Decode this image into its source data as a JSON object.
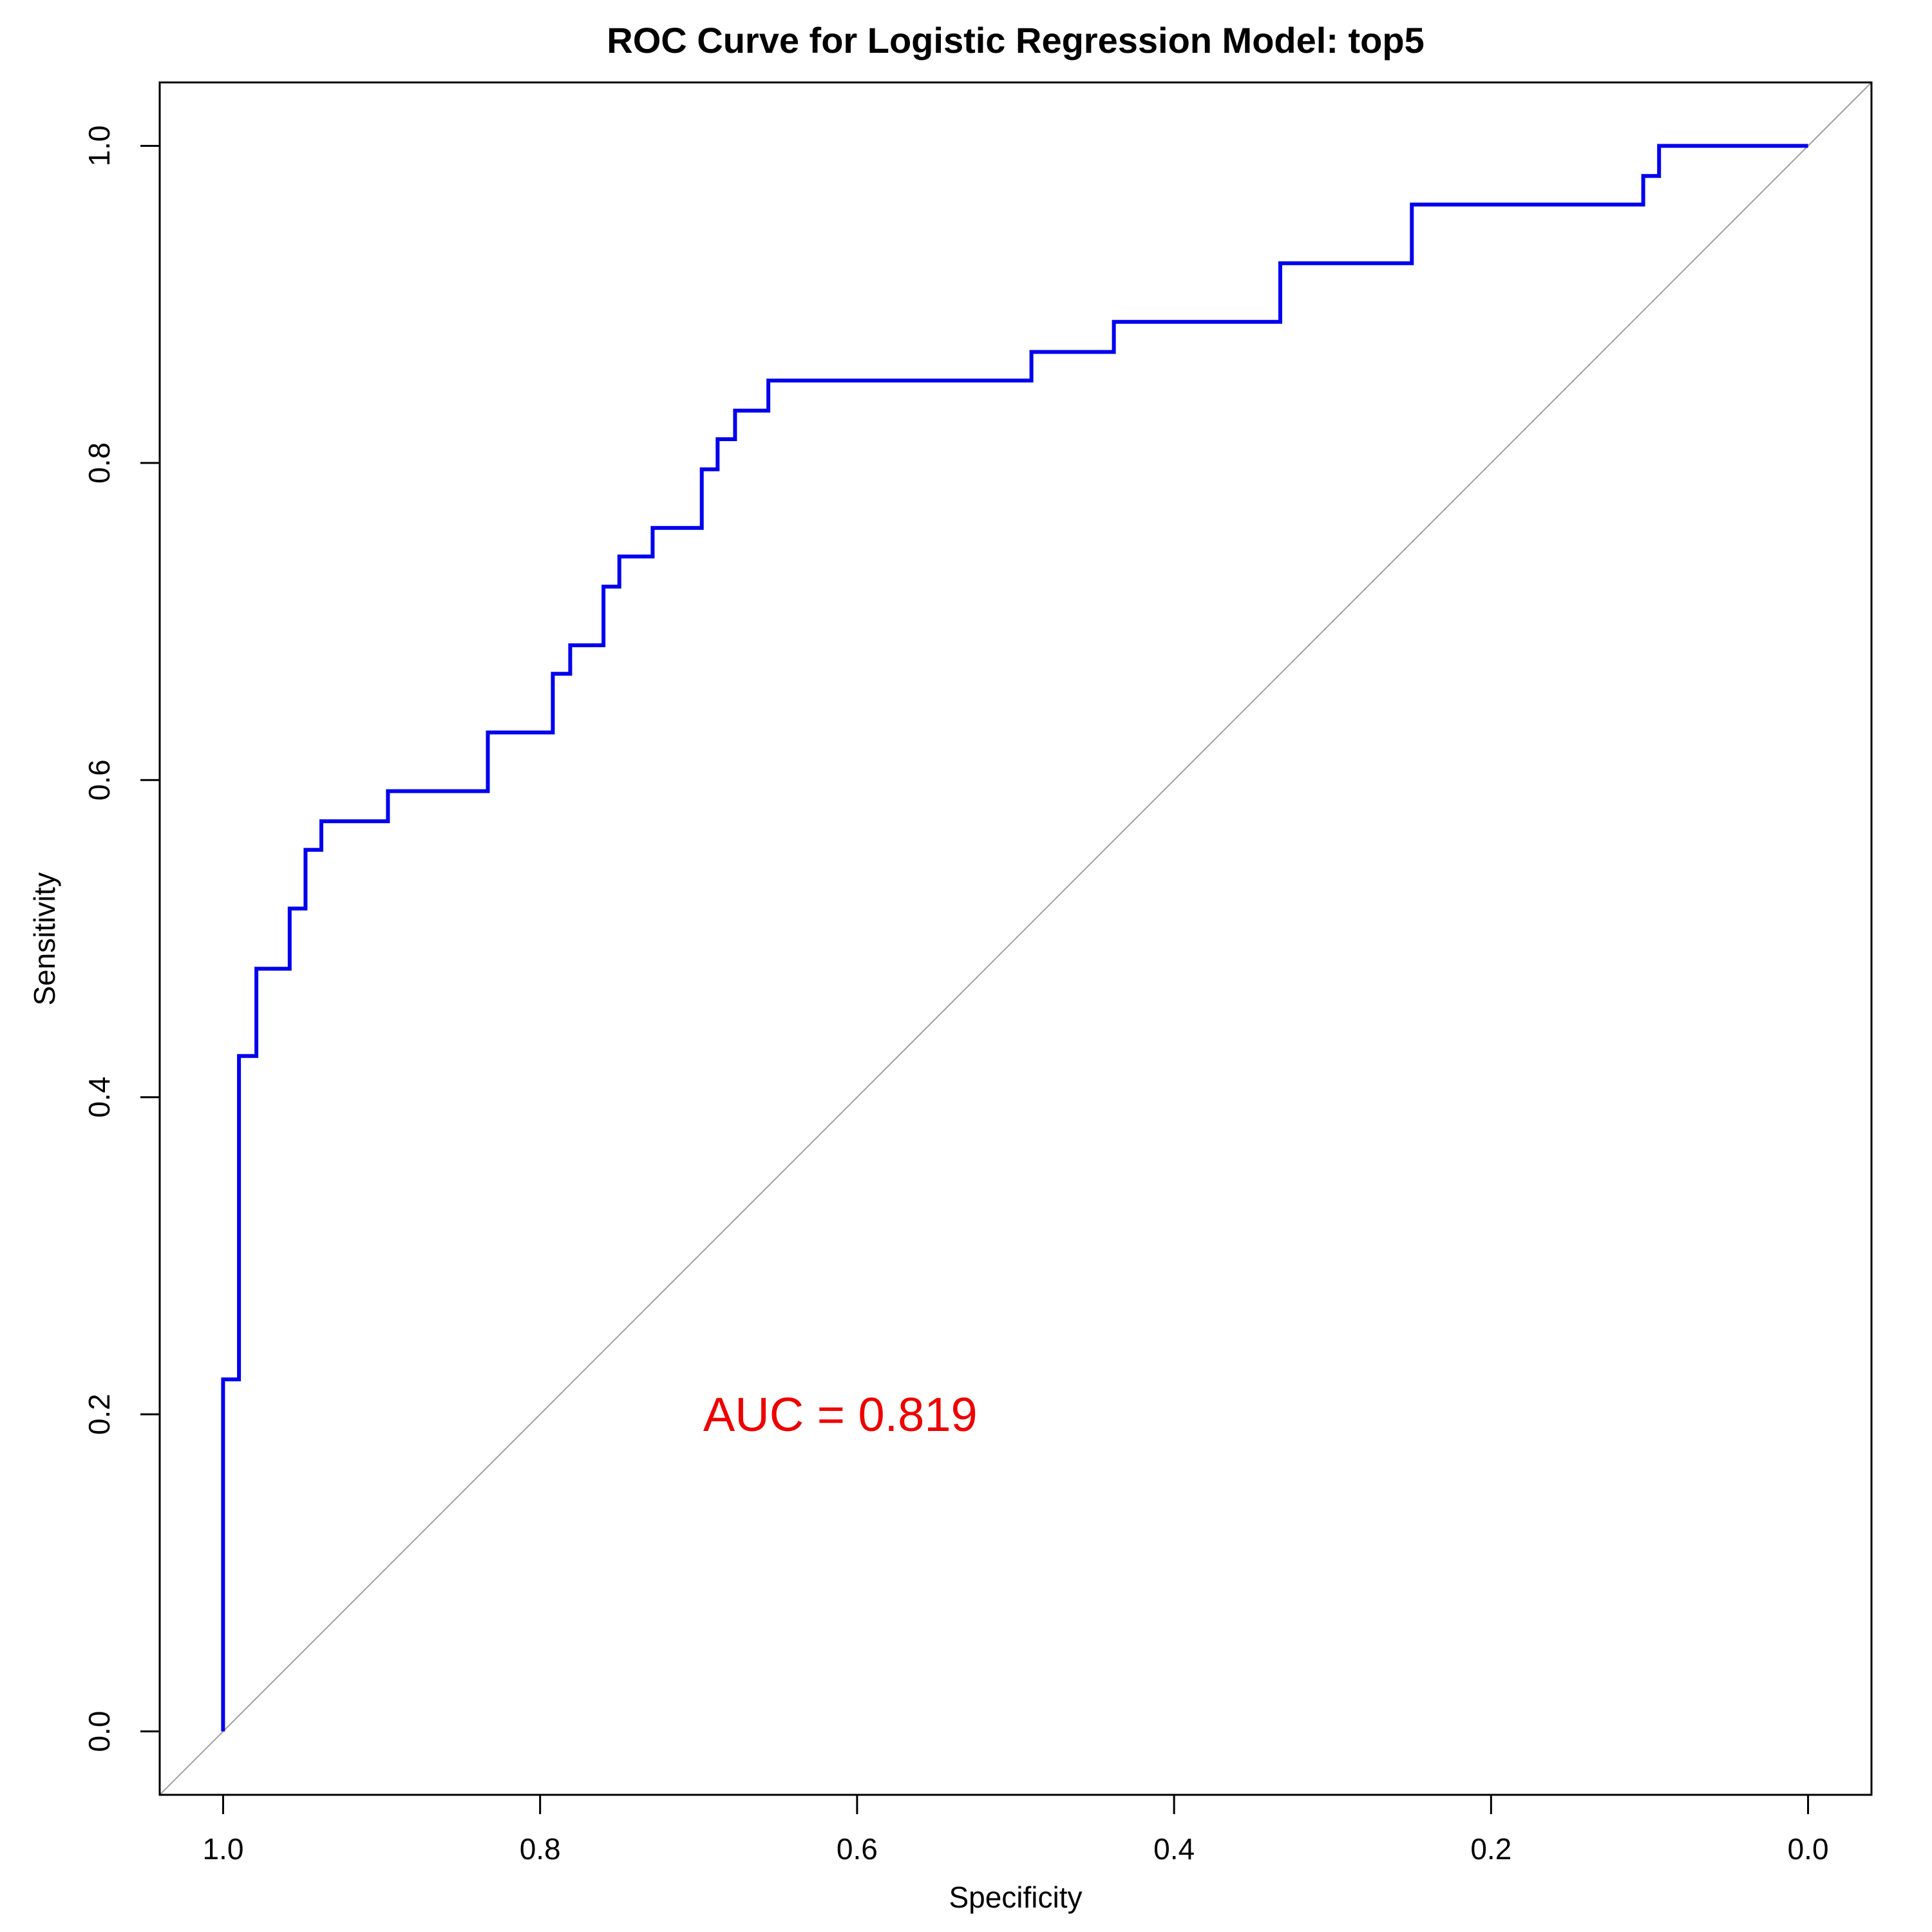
{
  "chart_data": {
    "type": "line",
    "title": "ROC Curve for Logistic Regression Model: top5",
    "xlabel": "Specificity",
    "ylabel": "Sensitivity",
    "x_reversed": true,
    "xlim": [
      1.04,
      -0.04
    ],
    "ylim": [
      -0.04,
      1.04
    ],
    "xticks": [
      1.0,
      0.8,
      0.6,
      0.4,
      0.2,
      0.0
    ],
    "xtick_labels": [
      "1.0",
      "0.8",
      "0.6",
      "0.4",
      "0.2",
      "0.0"
    ],
    "yticks": [
      0.0,
      0.2,
      0.4,
      0.6,
      0.8,
      1.0
    ],
    "ytick_labels": [
      "0.0",
      "0.2",
      "0.4",
      "0.6",
      "0.8",
      "1.0"
    ],
    "grid": false,
    "series": [
      {
        "color": "#0000ee",
        "style": "step",
        "points": [
          [
            1.0,
            0.0
          ],
          [
            1.0,
            0.222
          ],
          [
            0.99,
            0.222
          ],
          [
            0.99,
            0.426
          ],
          [
            0.979,
            0.426
          ],
          [
            0.979,
            0.481
          ],
          [
            0.958,
            0.481
          ],
          [
            0.958,
            0.519
          ],
          [
            0.948,
            0.519
          ],
          [
            0.948,
            0.556
          ],
          [
            0.938,
            0.556
          ],
          [
            0.938,
            0.574
          ],
          [
            0.896,
            0.574
          ],
          [
            0.896,
            0.593
          ],
          [
            0.833,
            0.593
          ],
          [
            0.833,
            0.63
          ],
          [
            0.792,
            0.63
          ],
          [
            0.792,
            0.667
          ],
          [
            0.781,
            0.667
          ],
          [
            0.781,
            0.685
          ],
          [
            0.76,
            0.685
          ],
          [
            0.76,
            0.722
          ],
          [
            0.75,
            0.722
          ],
          [
            0.75,
            0.741
          ],
          [
            0.729,
            0.741
          ],
          [
            0.729,
            0.759
          ],
          [
            0.698,
            0.759
          ],
          [
            0.698,
            0.796
          ],
          [
            0.688,
            0.796
          ],
          [
            0.688,
            0.815
          ],
          [
            0.677,
            0.815
          ],
          [
            0.677,
            0.833
          ],
          [
            0.656,
            0.833
          ],
          [
            0.656,
            0.852
          ],
          [
            0.49,
            0.852
          ],
          [
            0.49,
            0.87
          ],
          [
            0.438,
            0.87
          ],
          [
            0.438,
            0.889
          ],
          [
            0.333,
            0.889
          ],
          [
            0.333,
            0.926
          ],
          [
            0.25,
            0.926
          ],
          [
            0.25,
            0.963
          ],
          [
            0.104,
            0.963
          ],
          [
            0.104,
            0.981
          ],
          [
            0.094,
            0.981
          ],
          [
            0.094,
            1.0
          ],
          [
            0.0,
            1.0
          ]
        ]
      },
      {
        "color": "#a0a0a0",
        "style": "reference-diagonal",
        "points": [
          [
            1.04,
            -0.04
          ],
          [
            -0.04,
            1.04
          ]
        ]
      }
    ],
    "annotation": {
      "text": "AUC = 0.819",
      "color": "#ee0000",
      "x": 0.7,
      "y": 0.2
    }
  }
}
